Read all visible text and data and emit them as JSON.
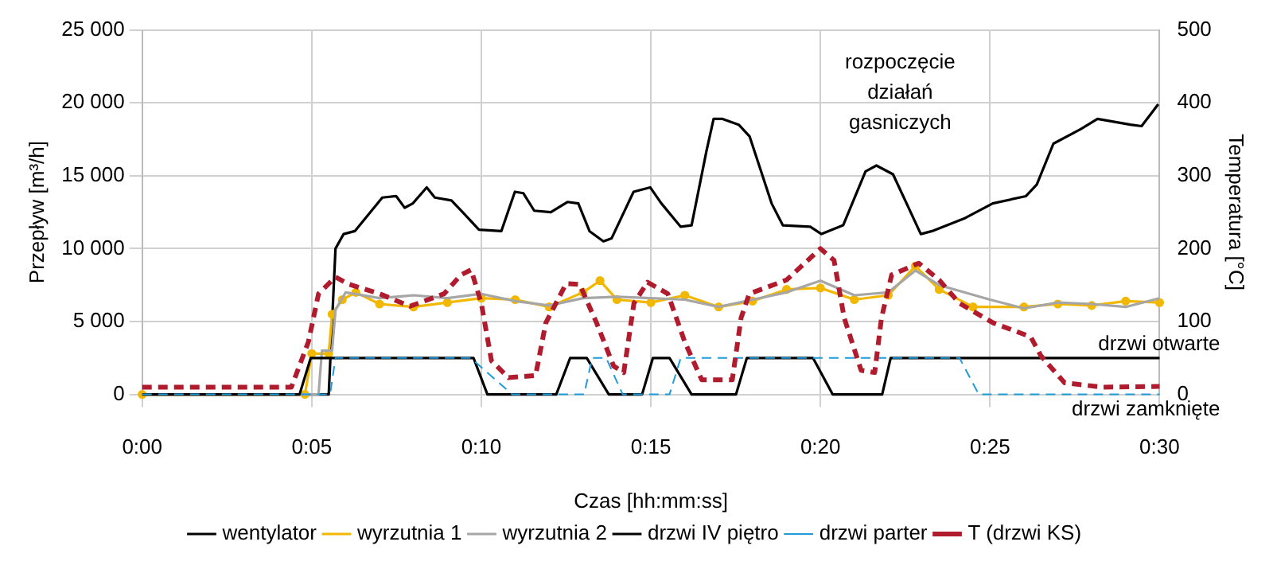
{
  "chart_data": {
    "type": "line",
    "xlabel": "Czas [hh:mm:ss]",
    "ylabel": "Przepływ [m³/h]",
    "y2label": "Temperatura [°C]",
    "xlim": [
      0,
      30
    ],
    "xticks": [
      {
        "value": 0,
        "label": "0:00"
      },
      {
        "value": 5,
        "label": "0:05"
      },
      {
        "value": 10,
        "label": "0:10"
      },
      {
        "value": 15,
        "label": "0:15"
      },
      {
        "value": 20,
        "label": "0:20"
      },
      {
        "value": 25,
        "label": "0:25"
      },
      {
        "value": 30,
        "label": "0:30"
      }
    ],
    "ylim": [
      0,
      25000
    ],
    "yticks": [
      0,
      {
        "value": 5000,
        "label": "5 000"
      },
      {
        "value": 10000,
        "label": "10 000"
      },
      {
        "value": 15000,
        "label": "15 000"
      },
      {
        "value": 20000,
        "label": "20 000"
      },
      {
        "value": 25000,
        "label": "25 000"
      }
    ],
    "y2lim": [
      0,
      500
    ],
    "y2ticks": [
      0,
      100,
      200,
      300,
      400,
      500
    ],
    "grid": true,
    "legend": "bottom",
    "annotations": [
      "rozpoczęcie\ndziałań\ngasniczych",
      {
        "text": "drzwi otwarte",
        "x": 30,
        "y": 2500
      },
      {
        "text": "drzwi zamknięte",
        "x": 30,
        "y": 0
      }
    ],
    "series": [
      {
        "name": "wentylator",
        "color": "#000000",
        "x": [
          0,
          5.5,
          5.7,
          5.94,
          6.27,
          7.08,
          7.49,
          7.74,
          7.98,
          8.39,
          8.63,
          9.12,
          9.45,
          9.93,
          10.59,
          10.99,
          11.24,
          11.56,
          12.05,
          12.54,
          12.86,
          13.19,
          13.6,
          13.84,
          14.49,
          14.98,
          15.31,
          15.88,
          16.2,
          16.64,
          16.85,
          17.1,
          17.59,
          17.91,
          18.56,
          18.89,
          19.7,
          20.03,
          20.67,
          21.33,
          21.65,
          22.14,
          22.96,
          23.29,
          24.27,
          25.08,
          26.06,
          26.38,
          26.87,
          27.68,
          28.17,
          29.14,
          29.47,
          29.96
        ],
        "values": [
          0,
          0,
          10000,
          11000,
          11200,
          13500,
          13600,
          12800,
          13100,
          14200,
          13500,
          13300,
          12500,
          11300,
          11200,
          13900,
          13800,
          12600,
          12500,
          13200,
          13100,
          11200,
          10500,
          10700,
          13900,
          14200,
          13100,
          11500,
          11600,
          16700,
          18900,
          18900,
          18500,
          17700,
          13100,
          11600,
          11500,
          11000,
          11600,
          15300,
          15700,
          15100,
          11000,
          11200,
          12100,
          13100,
          13600,
          14400,
          17200,
          18200,
          18900,
          18500,
          18400,
          19900
        ]
      },
      {
        "name": "wyrzutnia 1",
        "color": "#f2b800",
        "marker": "circle",
        "x": [
          0,
          4.8,
          5,
          5.5,
          5.6,
          5.9,
          6.3,
          7,
          8,
          9,
          10,
          11,
          12,
          13,
          13.5,
          14,
          15,
          16,
          17,
          18,
          19,
          20,
          21,
          22,
          22.8,
          23.5,
          24.5,
          26,
          27,
          28,
          29,
          30
        ],
        "values": [
          0,
          0,
          2800,
          2800,
          5500,
          6500,
          7000,
          6200,
          6000,
          6300,
          6600,
          6500,
          6000,
          7000,
          7800,
          6500,
          6300,
          6800,
          6000,
          6400,
          7200,
          7300,
          6500,
          6800,
          8800,
          7200,
          6000,
          6000,
          6200,
          6100,
          6400,
          6300
        ]
      },
      {
        "name": "wyrzutnia 2",
        "color": "#a6a6a6",
        "x": [
          0,
          5.2,
          5.3,
          5.6,
          5.7,
          6,
          7,
          8,
          9,
          10,
          11,
          12,
          13,
          14,
          15,
          16,
          17,
          18,
          19,
          20,
          21,
          22,
          22.8,
          23.5,
          25,
          26,
          27,
          28,
          29,
          30
        ],
        "values": [
          0,
          0,
          3000,
          3000,
          5800,
          7000,
          6600,
          6800,
          6600,
          6900,
          6400,
          6100,
          6600,
          6700,
          6600,
          6500,
          6000,
          6500,
          7000,
          7800,
          6800,
          7000,
          8500,
          7500,
          6500,
          5900,
          6300,
          6200,
          6000,
          6600
        ]
      },
      {
        "name": "drzwi IV piętro",
        "color": "#000000",
        "x": [
          0,
          4.64,
          4.97,
          9.77,
          10.18,
          12.21,
          12.62,
          13.11,
          13.76,
          14.74,
          15.06,
          15.55,
          16.2,
          17.51,
          17.83,
          19.78,
          20.36,
          21.82,
          22.07,
          30
        ],
        "values": [
          0,
          0,
          2500,
          2500,
          0,
          0,
          2500,
          2500,
          0,
          0,
          2500,
          2500,
          0,
          0,
          2500,
          2500,
          0,
          0,
          2500,
          2500
        ]
      },
      {
        "name": "drzwi parter",
        "color": "#1f9bd7",
        "line_style": "dashed",
        "x": [
          0,
          5.54,
          5.7,
          9.69,
          10.91,
          13.03,
          13.27,
          13.68,
          14.17,
          15.55,
          15.88,
          24.1,
          24.67,
          30
        ],
        "values": [
          0,
          0,
          2500,
          2500,
          0,
          0,
          2500,
          2500,
          0,
          0,
          2500,
          2500,
          0,
          0
        ]
      },
      {
        "name": "T (drzwi KS)",
        "color": "#b01c2e",
        "line_style": "dashed",
        "axis": "y2",
        "x": [
          0,
          4.4,
          4.9,
          5.2,
          5.7,
          6.1,
          7,
          7.9,
          8.9,
          9.4,
          9.7,
          10,
          10.3,
          10.8,
          11.6,
          11.9,
          12.5,
          12.9,
          13.4,
          13.9,
          14.2,
          14.5,
          14.9,
          15.5,
          16,
          16.5,
          17.4,
          17.66,
          17.9,
          19,
          20,
          20.4,
          20.7,
          21.2,
          21.6,
          21.8,
          22.1,
          22.9,
          23.5,
          24.1,
          25.1,
          26.2,
          26.5,
          27.2,
          28.3,
          30
        ],
        "values": [
          10,
          10,
          72,
          138,
          161,
          151,
          138,
          121,
          138,
          164,
          171,
          125,
          46,
          23,
          26,
          98,
          152,
          151,
          98,
          39,
          30,
          125,
          154,
          138,
          72,
          20,
          20,
          105,
          138,
          157,
          200,
          184,
          105,
          33,
          30,
          105,
          164,
          180,
          157,
          125,
          98,
          79,
          53,
          16,
          10,
          11
        ]
      }
    ]
  }
}
